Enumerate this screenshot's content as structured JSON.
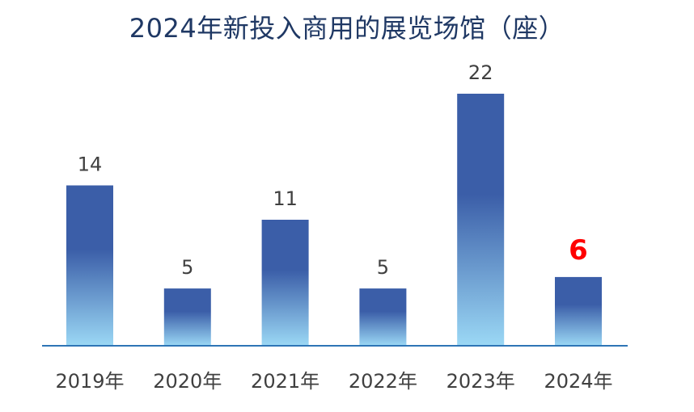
{
  "chart_data": {
    "type": "bar",
    "title": "2024年新投入商用的展览场馆（座）",
    "categories": [
      "2019年",
      "2020年",
      "2021年",
      "2022年",
      "2023年",
      "2024年"
    ],
    "values": [
      14,
      5,
      11,
      5,
      22,
      6
    ],
    "highlight_index": 5,
    "ylim": [
      0,
      22
    ],
    "grid": false,
    "legend": "none",
    "colors": {
      "bar_top": "#3b5ea8",
      "bar_bottom": "#9bd8f5",
      "axis": "#2e75b6",
      "label": "#404040",
      "highlight_label": "#ff0000",
      "title": "#1f3864"
    }
  }
}
